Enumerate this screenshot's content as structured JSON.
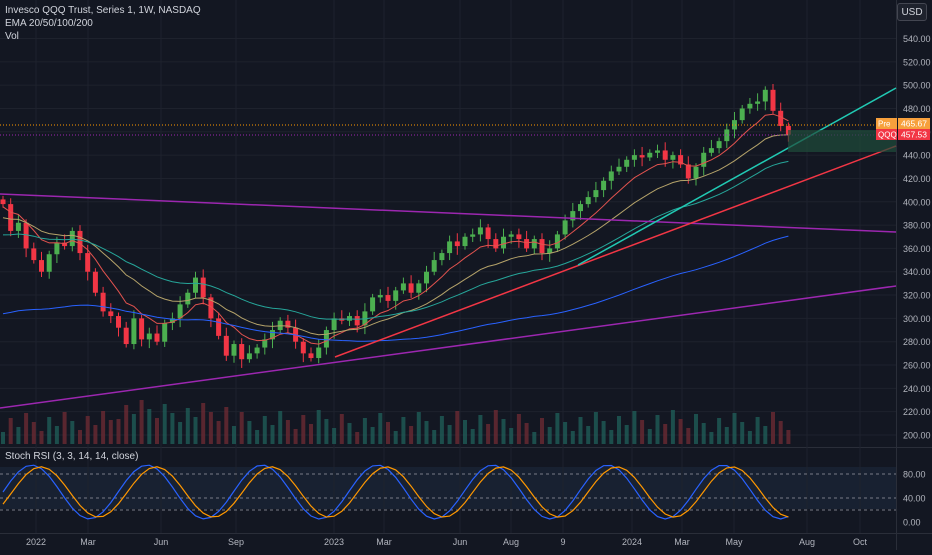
{
  "header": {
    "title": "Invesco QQQ Trust, Series 1, 1W, NASDAQ",
    "indicator": "EMA 20/50/100/200",
    "volume_label": "Vol",
    "currency_button": "USD"
  },
  "rsi_panel": {
    "title": "Stoch RSI (3, 3, 14, 14, close)",
    "levels": [
      80,
      40,
      20
    ],
    "ticks": [
      "80.00",
      "40.00",
      "0.00"
    ]
  },
  "price_tags": [
    {
      "label": "Pre",
      "value": "465.67",
      "color": "#f7a03c"
    },
    {
      "label": "QQQ",
      "value": "457.53",
      "color": "#f23645"
    }
  ],
  "colors": {
    "up": "#26a69a",
    "up_candle": "#4caf50",
    "down": "#f23645",
    "ema20": "#e2534f",
    "ema50": "#b5a36a",
    "ema100": "#26a69a",
    "ema200": "#2962ff",
    "trend_purple": "#9c27b0",
    "trend_red": "#f23645",
    "trend_cyan": "#21c9b3",
    "stoch_k": "#2962ff",
    "stoch_d": "#ff9800"
  },
  "chart_data": {
    "type": "candlestick",
    "symbol": "QQQ",
    "interval": "1W",
    "y_ticks": [
      540,
      520,
      500,
      480,
      460,
      440,
      420,
      400,
      380,
      360,
      340,
      320,
      300,
      280,
      260,
      240,
      220,
      200
    ],
    "y_range": [
      195,
      555
    ],
    "x_ticks": [
      "2022",
      "Mar",
      "Jun",
      "Sep",
      "2023",
      "Mar",
      "Jun",
      "Aug",
      "9",
      "2024",
      "Mar",
      "May",
      "Aug",
      "Oct"
    ],
    "closes": [
      398,
      375,
      382,
      360,
      350,
      340,
      355,
      365,
      362,
      375,
      356,
      340,
      322,
      306,
      302,
      292,
      278,
      300,
      282,
      287,
      280,
      296,
      300,
      312,
      322,
      335,
      318,
      300,
      285,
      268,
      278,
      265,
      270,
      275,
      282,
      290,
      298,
      292,
      280,
      270,
      266,
      275,
      290,
      300,
      298,
      302,
      294,
      306,
      318,
      320,
      315,
      324,
      330,
      322,
      330,
      340,
      350,
      356,
      366,
      362,
      370,
      372,
      378,
      368,
      360,
      370,
      372,
      368,
      360,
      368,
      356,
      360,
      372,
      384,
      392,
      398,
      404,
      410,
      418,
      426,
      430,
      436,
      440,
      438,
      442,
      444,
      436,
      440,
      432,
      420,
      430,
      442,
      446,
      452,
      462,
      470,
      480,
      484,
      486,
      496,
      478,
      465,
      457.53
    ],
    "ema_labels": [
      "EMA 20",
      "EMA 50",
      "EMA 100",
      "EMA 200"
    ],
    "stoch_range": [
      0,
      100
    ]
  }
}
